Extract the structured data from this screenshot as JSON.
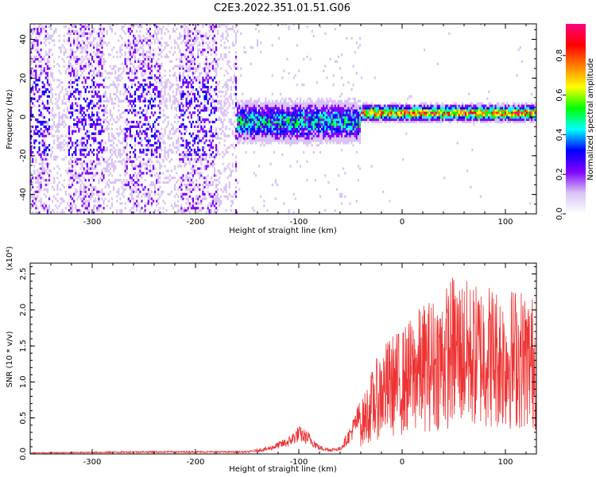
{
  "title": "C2E3.2022.351.01.51.G06",
  "chart_data": [
    {
      "type": "heatmap",
      "xlabel": "Height of straight line (km)",
      "ylabel": "Frequency (Hz)",
      "xlim": [
        -360,
        130
      ],
      "ylim": [
        -50,
        48
      ],
      "x_ticks": [
        -300,
        -200,
        -100,
        0,
        100
      ],
      "y_ticks": [
        -40,
        -20,
        0,
        20,
        40
      ],
      "grid": false,
      "colorbar": {
        "label": "Normalized spectral amplitude",
        "range": [
          0,
          0.96
        ],
        "ticks": [
          0.0,
          0.2,
          0.4,
          0.6,
          0.8
        ],
        "colormap": [
          "#ffffff",
          "#d9c2f5",
          "#8000ff",
          "#0000ff",
          "#00ffff",
          "#00ff00",
          "#ffff00",
          "#ff8000",
          "#ff0000",
          "#ff0080"
        ]
      },
      "features": [
        {
          "x_range": [
            -360,
            -160
          ],
          "freq_center": 5,
          "freq_spread": 50,
          "amplitude": 0.15,
          "description": "broadband scattered"
        },
        {
          "x_range": [
            -160,
            -40
          ],
          "freq_center": -3,
          "freq_spread": 8,
          "amplitude": 0.4
        },
        {
          "x_range": [
            -40,
            130
          ],
          "freq_center": 1.5,
          "freq_spread": 3,
          "amplitude": 0.85
        }
      ]
    },
    {
      "type": "line",
      "xlabel": "Height of straight line (km)",
      "ylabel": "SNR (10 * v/v)",
      "y_multiplier": "(x10⁴)",
      "xlim": [
        -360,
        130
      ],
      "ylim": [
        0,
        2.65
      ],
      "x_ticks": [
        -300,
        -200,
        -100,
        0,
        100
      ],
      "y_ticks": [
        0.0,
        0.5,
        1.0,
        1.5,
        2.0,
        2.5
      ],
      "y_tick_labels": [
        "0.0",
        "0.5",
        "1.0",
        "1.5",
        "2.0",
        "2.5"
      ],
      "grid": false,
      "series": [
        {
          "color": "#ee3333",
          "x": [
            -360,
            -300,
            -250,
            -200,
            -150,
            -130,
            -110,
            -100,
            -90,
            -80,
            -70,
            -60,
            -50,
            -40,
            -30,
            -20,
            -10,
            0,
            10,
            20,
            30,
            40,
            50,
            60,
            70,
            80,
            90,
            100,
            110,
            120,
            130
          ],
          "y": [
            0.01,
            0.015,
            0.02,
            0.02,
            0.02,
            0.05,
            0.12,
            0.2,
            0.15,
            0.06,
            0.04,
            0.05,
            0.2,
            0.4,
            0.65,
            0.85,
            0.95,
            1.0,
            1.1,
            1.2,
            1.25,
            1.3,
            1.45,
            1.4,
            1.35,
            1.4,
            1.35,
            1.3,
            1.35,
            1.3,
            1.25
          ]
        }
      ]
    }
  ]
}
